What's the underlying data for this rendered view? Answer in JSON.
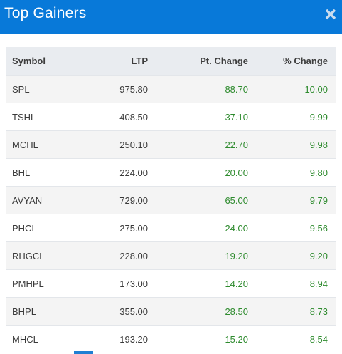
{
  "modal": {
    "title": "Top Gainers",
    "close_icon": "close-icon"
  },
  "colors": {
    "header_bg": "#0879d9",
    "gain_green": "#2e8b2e",
    "table_header_bg": "#e9ecf0",
    "row_alt_bg": "#f4f4f4"
  },
  "table": {
    "headers": {
      "symbol": "Symbol",
      "ltp": "LTP",
      "pt_change": "Pt. Change",
      "pct_change": "% Change"
    },
    "rows": [
      {
        "symbol": "SPL",
        "ltp": "975.80",
        "pt_change": "88.70",
        "pct_change": "10.00"
      },
      {
        "symbol": "TSHL",
        "ltp": "408.50",
        "pt_change": "37.10",
        "pct_change": "9.99"
      },
      {
        "symbol": "MCHL",
        "ltp": "250.10",
        "pt_change": "22.70",
        "pct_change": "9.98"
      },
      {
        "symbol": "BHL",
        "ltp": "224.00",
        "pt_change": "20.00",
        "pct_change": "9.80"
      },
      {
        "symbol": "AVYAN",
        "ltp": "729.00",
        "pt_change": "65.00",
        "pct_change": "9.79"
      },
      {
        "symbol": "PHCL",
        "ltp": "275.00",
        "pt_change": "24.00",
        "pct_change": "9.56"
      },
      {
        "symbol": "RHGCL",
        "ltp": "228.00",
        "pt_change": "19.20",
        "pct_change": "9.20"
      },
      {
        "symbol": "PMHPL",
        "ltp": "173.00",
        "pt_change": "14.20",
        "pct_change": "8.94"
      },
      {
        "symbol": "BHPL",
        "ltp": "355.00",
        "pt_change": "28.50",
        "pct_change": "8.73"
      },
      {
        "symbol": "MHCL",
        "ltp": "193.20",
        "pt_change": "15.20",
        "pct_change": "8.54"
      }
    ]
  }
}
